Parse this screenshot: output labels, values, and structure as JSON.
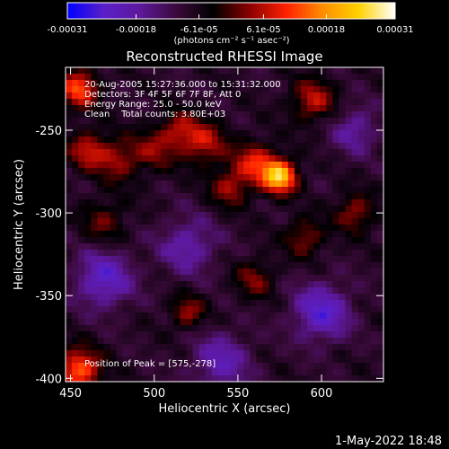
{
  "chart_data": {
    "type": "heatmap",
    "title": "Reconstructed RHESSI Image",
    "xlabel": "Heliocentric X (arcsec)",
    "ylabel": "Heliocentric Y (arcsec)",
    "xlim": [
      447,
      637
    ],
    "ylim": [
      -402,
      -212
    ],
    "x_ticks": [
      450,
      500,
      550,
      600
    ],
    "y_ticks": [
      -250,
      -300,
      -350,
      -400
    ],
    "colorbar": {
      "range": [
        -0.00031,
        0.00031
      ],
      "tick_values": [
        -0.00031,
        -0.00018,
        -6.1e-05,
        6.1e-05,
        0.00018,
        0.00031
      ],
      "tick_labels": [
        "-0.00031",
        "-0.00018",
        "-6.1e-05",
        "6.1e-05",
        "0.00018",
        "0.00031"
      ],
      "unit_label": "(photons cm⁻² s⁻¹ asec⁻²)",
      "colors": [
        "#0000ff",
        "#5a1fc8",
        "#5e189b",
        "#3a0a3a",
        "#000000",
        "#8a0000",
        "#ff2000",
        "#ff8c00",
        "#ffd200",
        "#ffffff"
      ]
    },
    "annotations": [
      "20-Aug-2005 15:27:36.000 to 15:31:32.000",
      "Detectors: 3F 4F 5F 6F 7F 8F, Att 0",
      "Energy Range: 25.0 - 50.0 keV",
      "Clean    Total counts: 3.80E+03"
    ],
    "peak_label": "Position of Peak = [575,-278]",
    "peak": {
      "x": 575,
      "y": -278,
      "value": 0.00031
    },
    "sources": [
      {
        "x": 575,
        "y": -278,
        "amp": 0.00031,
        "sigma": 7
      },
      {
        "x": 560,
        "y": -270,
        "amp": 0.00016,
        "sigma": 9
      },
      {
        "x": 545,
        "y": -285,
        "amp": 0.00012,
        "sigma": 8
      },
      {
        "x": 530,
        "y": -258,
        "amp": 0.00014,
        "sigma": 9
      },
      {
        "x": 515,
        "y": -250,
        "amp": 0.00012,
        "sigma": 8
      },
      {
        "x": 500,
        "y": -262,
        "amp": 0.0001,
        "sigma": 9
      },
      {
        "x": 478,
        "y": -268,
        "amp": 0.00012,
        "sigma": 9
      },
      {
        "x": 460,
        "y": -262,
        "amp": 0.00014,
        "sigma": 8
      },
      {
        "x": 455,
        "y": -225,
        "amp": 0.0002,
        "sigma": 8
      },
      {
        "x": 455,
        "y": -395,
        "amp": 0.00022,
        "sigma": 9
      },
      {
        "x": 595,
        "y": -232,
        "amp": 0.00014,
        "sigma": 9
      },
      {
        "x": 620,
        "y": -300,
        "amp": 0.00012,
        "sigma": 8
      },
      {
        "x": 590,
        "y": -315,
        "amp": 0.00011,
        "sigma": 8
      },
      {
        "x": 560,
        "y": -340,
        "amp": 0.0001,
        "sigma": 8
      },
      {
        "x": 520,
        "y": -360,
        "amp": 0.00012,
        "sigma": 7
      },
      {
        "x": 470,
        "y": -305,
        "amp": 9e-05,
        "sigma": 9
      },
      {
        "x": 470,
        "y": -340,
        "amp": -0.00015,
        "sigma": 12
      },
      {
        "x": 600,
        "y": -360,
        "amp": -0.00016,
        "sigma": 12
      },
      {
        "x": 540,
        "y": -390,
        "amp": -0.00012,
        "sigma": 12
      },
      {
        "x": 520,
        "y": -320,
        "amp": -0.00011,
        "sigma": 12
      },
      {
        "x": 620,
        "y": -250,
        "amp": -0.0001,
        "sigma": 10
      }
    ]
  },
  "footer": {
    "timestamp": "1-May-2022 18:48"
  }
}
